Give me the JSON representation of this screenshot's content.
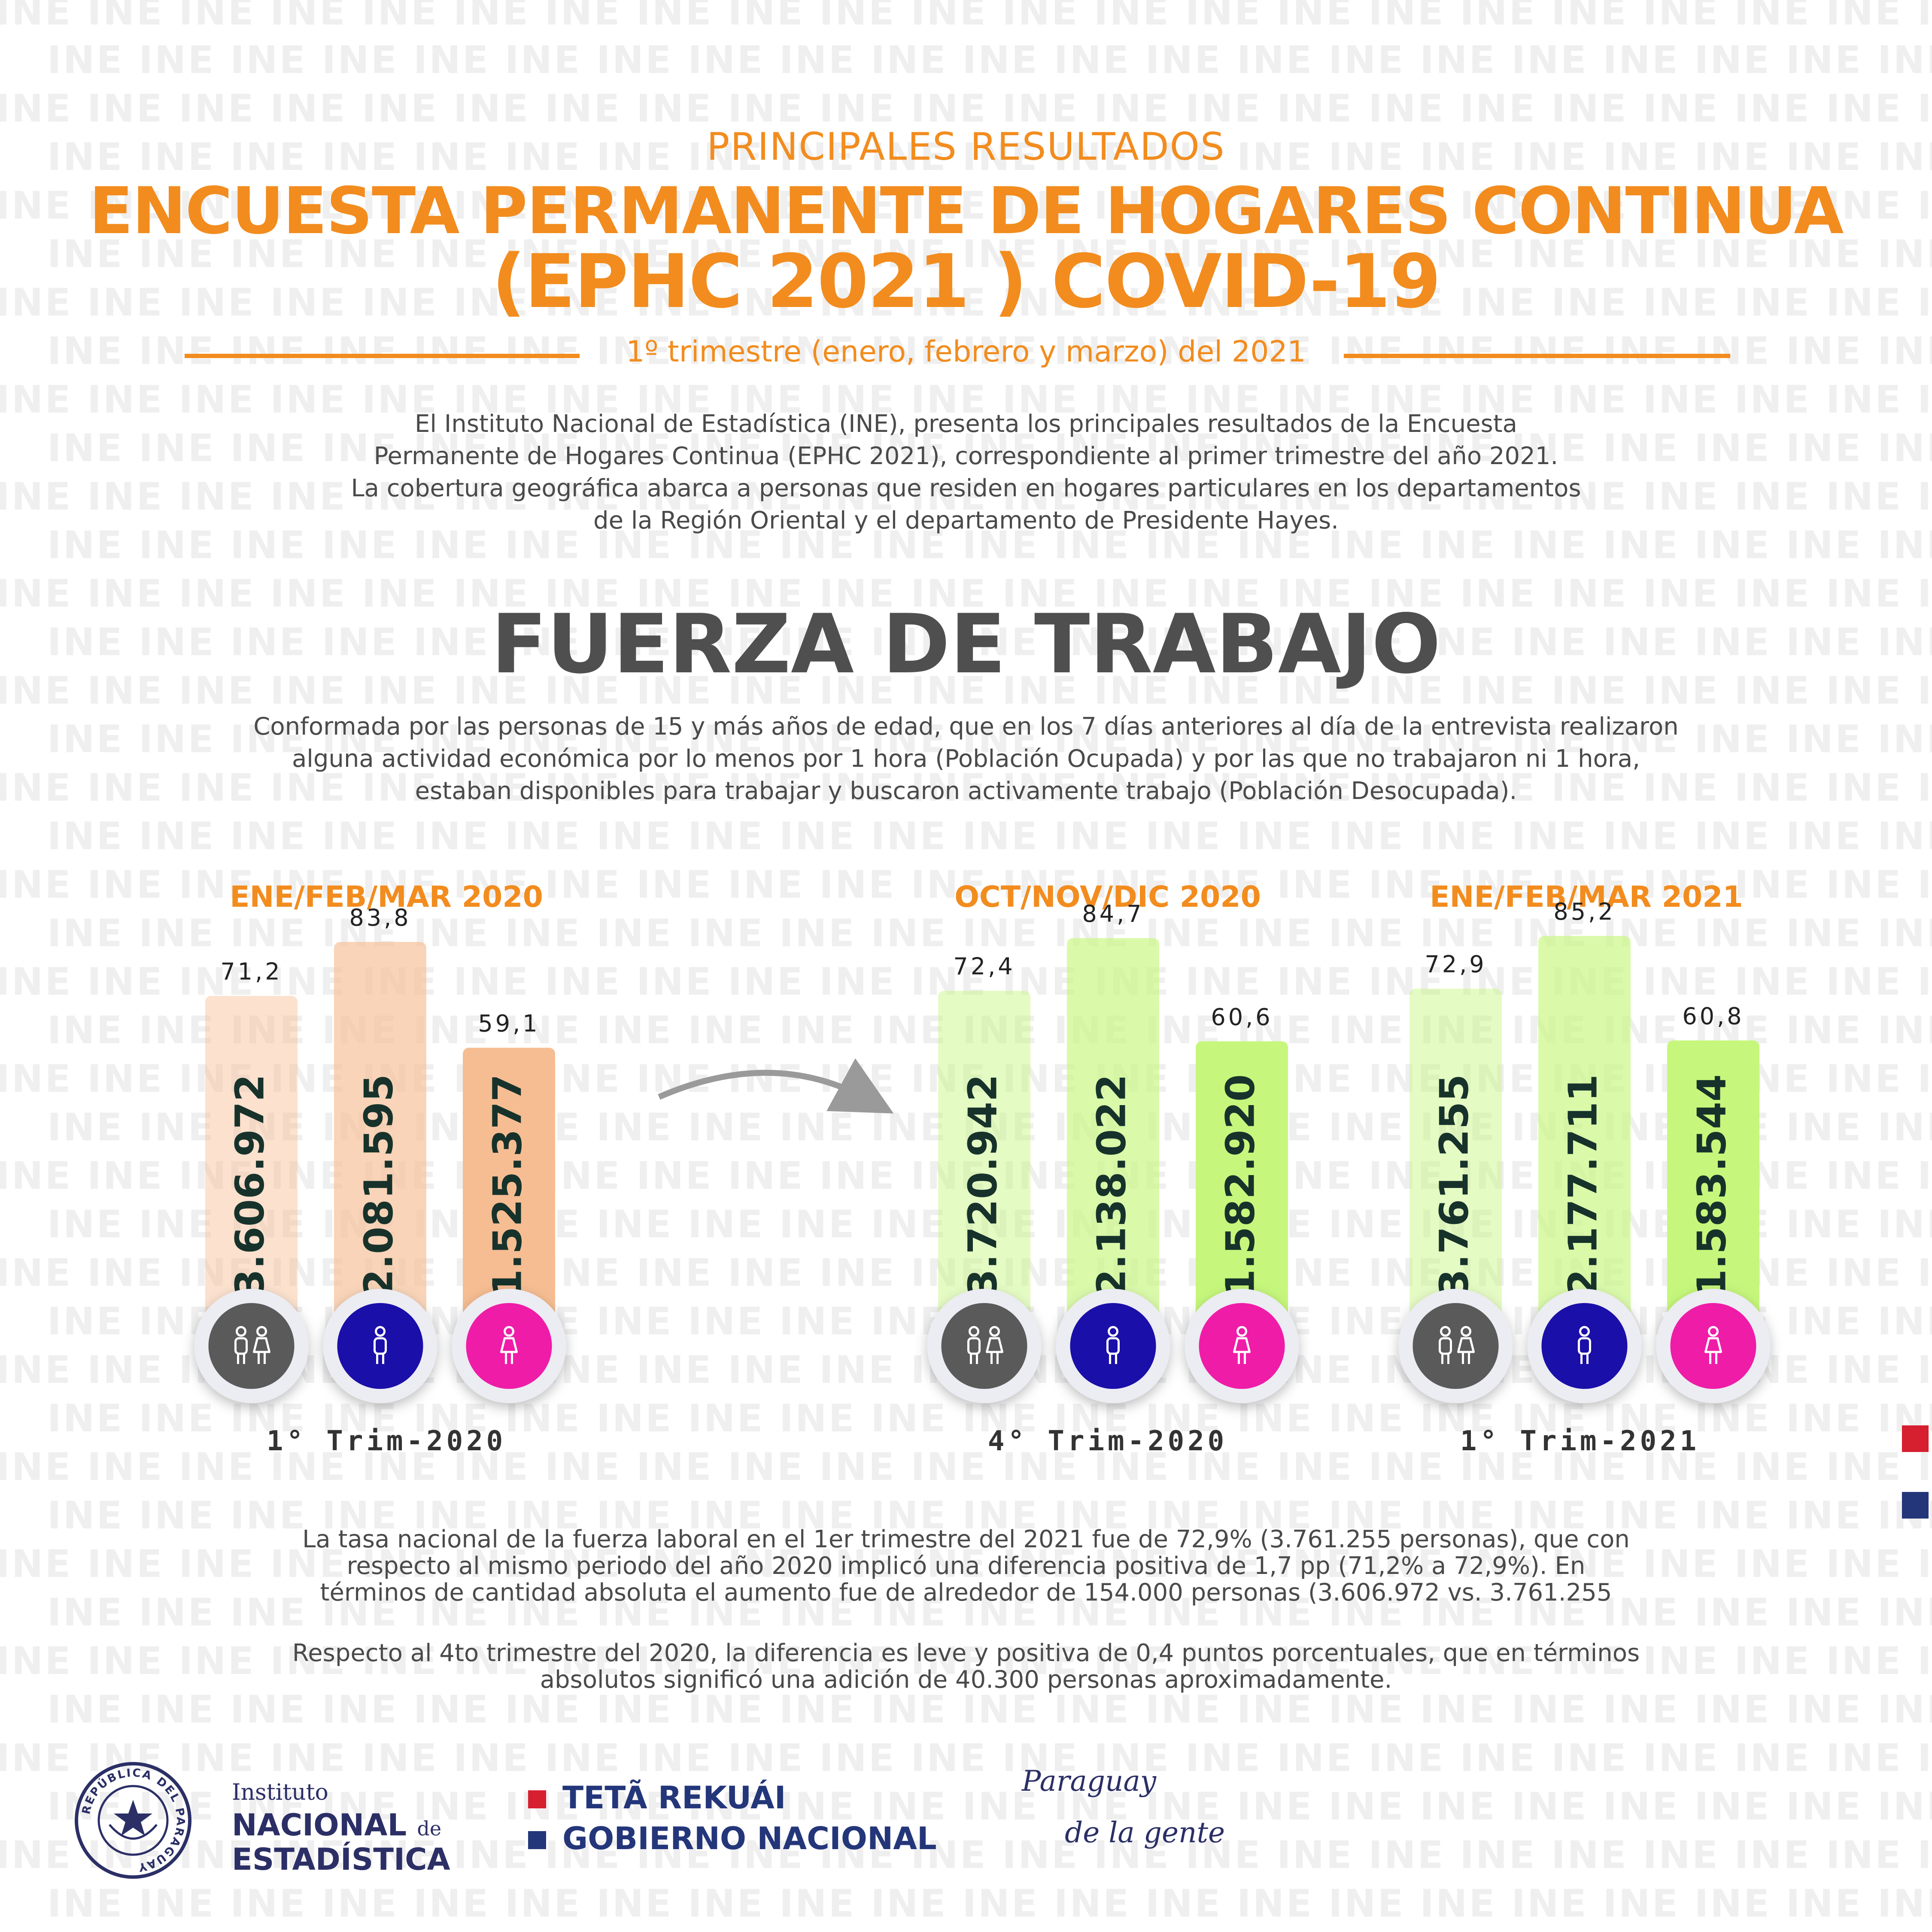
{
  "header": {
    "subtitle": "PRINCIPALES RESULTADOS",
    "title_line1": "ENCUESTA PERMANENTE DE HOGARES CONTINUA",
    "title_line2": "(EPHC 2021 ) COVID-19",
    "period": "1º trimestre (enero, febrero y marzo) del 2021"
  },
  "intro": {
    "lines": [
      "El Instituto Nacional de Estadística (INE), presenta los principales resultados de la Encuesta",
      "Permanente de Hogares Continua (EPHC 2021), correspondiente al primer trimestre del año 2021.",
      "La cobertura geográfica abarca a personas que residen en hogares particulares en los departamentos",
      "de la Región Oriental y el departamento de Presidente Hayes."
    ]
  },
  "section": {
    "title": "FUERZA DE TRABAJO",
    "definition_lines": [
      "Conformada por las personas de 15 y más años de edad, que en los 7 días anteriores al día de la entrevista realizaron",
      "alguna actividad económica por lo menos por 1 hora (Población Ocupada) y por las que no trabajaron ni 1 hora,",
      "estaban disponibles para trabajar y buscaron activamente trabajo (Población Desocupada)."
    ]
  },
  "chart_data": {
    "type": "bar",
    "groups": [
      {
        "period_label": "ENE/FEB/MAR 2020",
        "trim_label": "1° Trim-2020",
        "color": "#f6bd92",
        "bars": [
          {
            "icon": "both-people-icon",
            "rate": 71.2,
            "rate_label": "71,2",
            "count_label": "3.606.972"
          },
          {
            "icon": "man-icon",
            "rate": 83.8,
            "rate_label": "83,8",
            "count_label": "2.081.595"
          },
          {
            "icon": "woman-icon",
            "rate": 59.1,
            "rate_label": "59,1",
            "count_label": "1.525.377"
          }
        ]
      },
      {
        "period_label": "OCT/NOV/DIC 2020",
        "trim_label": "4° Trim-2020",
        "color": "#c6f77c",
        "bars": [
          {
            "icon": "both-people-icon",
            "rate": 72.4,
            "rate_label": "72,4",
            "count_label": "3.720.942"
          },
          {
            "icon": "man-icon",
            "rate": 84.7,
            "rate_label": "84,7",
            "count_label": "2.138.022"
          },
          {
            "icon": "woman-icon",
            "rate": 60.6,
            "rate_label": "60,6",
            "count_label": "1.582.920"
          }
        ]
      },
      {
        "period_label": "ENE/FEB/MAR 2021",
        "trim_label": "1° Trim-2021",
        "color": "#c6f77c",
        "bars": [
          {
            "icon": "both-people-icon",
            "rate": 72.9,
            "rate_label": "72,9",
            "count_label": "3.761.255"
          },
          {
            "icon": "man-icon",
            "rate": 85.2,
            "rate_label": "85,2",
            "count_label": "2.177.711"
          },
          {
            "icon": "woman-icon",
            "rate": 60.8,
            "rate_label": "60,8",
            "count_label": "1.583.544"
          }
        ]
      }
    ],
    "icon_colors": {
      "both-people-icon": "#5a5a5a",
      "man-icon": "#1a0fa8",
      "woman-icon": "#ef1ca8"
    }
  },
  "conclusion": {
    "lines": [
      "La tasa nacional de la fuerza laboral en el 1er trimestre del 2021 fue de 72,9% (3.761.255 personas), que con",
      "respecto al mismo periodo del año 2020 implicó una diferencia positiva de 1,7 pp (71,2% a 72,9%). En",
      "términos de cantidad absoluta el aumento fue de alrededor de 154.000 personas (3.606.972 vs. 3.761.255"
    ],
    "respecto_lines": [
      "Respecto al 4to trimestre del 2020, la diferencia es leve y positiva de 0,4 puntos porcentuales, que en términos",
      "absolutos significó una adición de 40.300 personas aproximadamente."
    ]
  },
  "footer": {
    "seal_text": "REPÚBLICA DEL PARAGUAY",
    "ine_small": "Instituto",
    "ine_big1": "NACIONAL",
    "ine_de": "de",
    "ine_big2": "ESTADÍSTICA",
    "gov_line1": "TETÃ REKUÁI",
    "gov_line2": "GOBIERNO NACIONAL",
    "slogan_line1": "Paraguay",
    "slogan_line2": "de la gente"
  },
  "watermark_text": "INE",
  "colors": {
    "orange": "#f28c1e",
    "flag_red": "#d61f2f",
    "flag_blue": "#24367a"
  }
}
